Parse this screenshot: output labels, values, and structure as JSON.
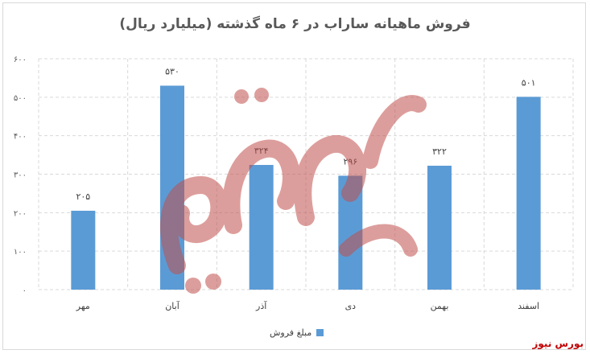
{
  "chart_data": {
    "type": "bar",
    "title": "فروش ماهیانه ساراب در ۶ ماه گذشته (میلیارد ریال)",
    "categories": [
      "مهر",
      "آبان",
      "آذر",
      "دی",
      "بهمن",
      "اسفند"
    ],
    "values": [
      205,
      530,
      324,
      296,
      322,
      501
    ],
    "value_labels": [
      "۲۰۵",
      "۵۳۰",
      "۳۲۴",
      "۲۹۶",
      "۳۲۲",
      "۵۰۱"
    ],
    "series": [
      {
        "name": "مبلغ فروش",
        "values": [
          205,
          530,
          324,
          296,
          322,
          501
        ]
      }
    ],
    "ylim": [
      0,
      600
    ],
    "yticks": [
      0,
      100,
      200,
      300,
      400,
      500,
      600
    ],
    "ytick_labels": [
      "۰",
      "۱۰۰",
      "۲۰۰",
      "۳۰۰",
      "۴۰۰",
      "۵۰۰",
      "۶۰۰"
    ],
    "grid": true,
    "legend_position": "bottom",
    "bar_color": "#5b9bd5"
  },
  "logo_text": "بورس نیوز",
  "watermark_text": "بورس نیوز"
}
